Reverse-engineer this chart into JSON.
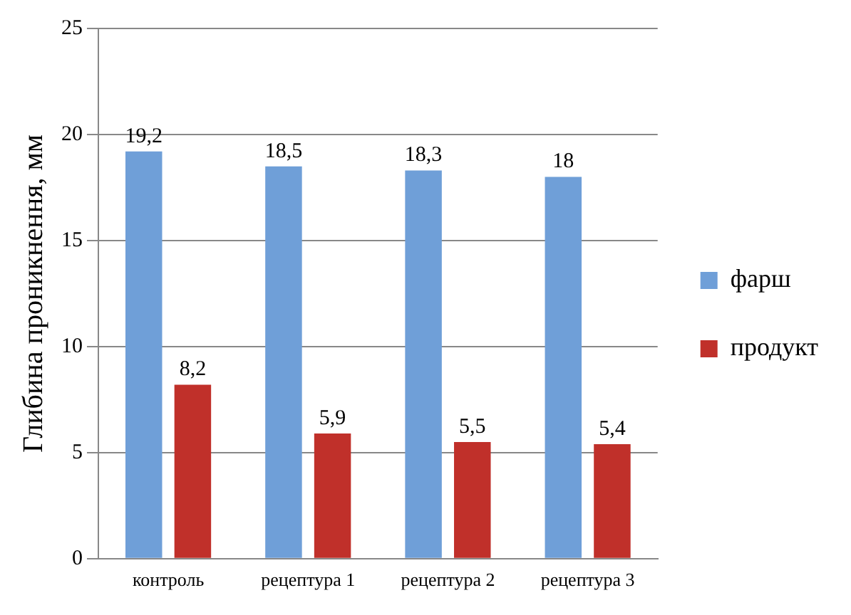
{
  "chart_data": {
    "type": "bar",
    "ylabel": "Глибина проникнення, мм",
    "categories": [
      "контроль",
      "рецептура 1",
      "рецептура 2",
      "рецептура 3"
    ],
    "series": [
      {
        "name": "фарш",
        "color": "#6f9fd8",
        "values": [
          19.2,
          18.5,
          18.3,
          18
        ],
        "value_labels": [
          "19,2",
          "18,5",
          "18,3",
          "18"
        ]
      },
      {
        "name": "продукт",
        "color": "#c0302a",
        "values": [
          8.2,
          5.9,
          5.5,
          5.4
        ],
        "value_labels": [
          "8,2",
          "5,9",
          "5,5",
          "5,4"
        ]
      }
    ],
    "ylim": [
      0,
      25
    ],
    "yticks": [
      0,
      5,
      10,
      15,
      20,
      25
    ],
    "grid": "y",
    "legend": "right"
  }
}
